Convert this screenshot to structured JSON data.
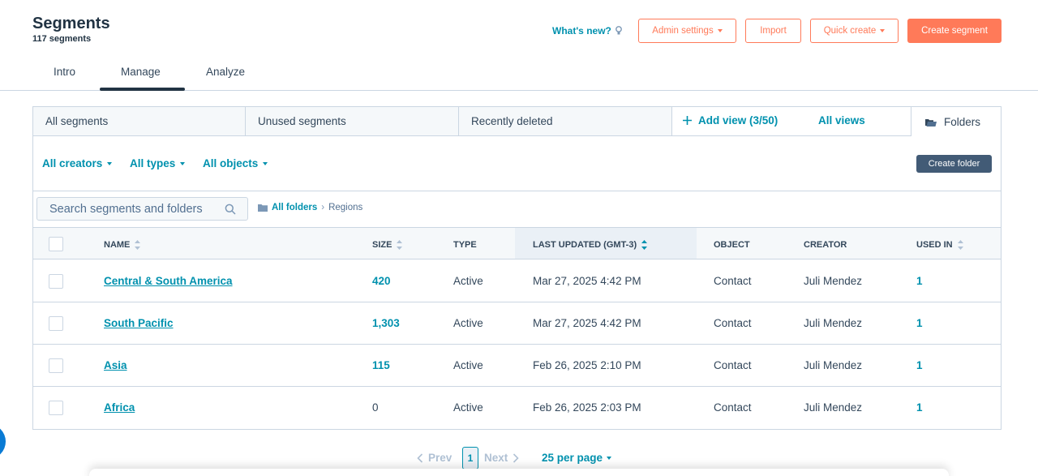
{
  "header": {
    "title": "Segments",
    "subtitle": "117 segments",
    "whats_new": "What's new?",
    "admin_settings": "Admin settings",
    "import": "Import",
    "quick_create": "Quick create",
    "create_segment": "Create segment",
    "icons": {
      "whats_new": "lightbulb-icon",
      "dropdown": "caret-down-icon"
    }
  },
  "tabs": [
    "Intro",
    "Manage",
    "Analyze"
  ],
  "active_tab": "Manage",
  "views": {
    "tabs": [
      "All segments",
      "Unused segments",
      "Recently deleted"
    ],
    "add_view": "Add view (3/50)",
    "all_views": "All views",
    "folders": "Folders"
  },
  "filters": {
    "creators": "All creators",
    "types": "All types",
    "objects": "All objects",
    "create_folder": "Create folder"
  },
  "search": {
    "placeholder": "Search segments and folders"
  },
  "breadcrumb": {
    "root": "All folders",
    "current": "Regions"
  },
  "table": {
    "columns": {
      "name": "NAME",
      "size": "SIZE",
      "type": "TYPE",
      "last_updated": "LAST UPDATED (GMT-3)",
      "object": "OBJECT",
      "creator": "CREATOR",
      "used_in": "USED IN"
    },
    "rows": [
      {
        "name": "Central & South America",
        "size": "420",
        "type": "Active",
        "last_updated": "Mar 27, 2025 4:42 PM",
        "object": "Contact",
        "creator": "Juli Mendez",
        "used_in": "1"
      },
      {
        "name": "South Pacific",
        "size": "1,303",
        "type": "Active",
        "last_updated": "Mar 27, 2025 4:42 PM",
        "object": "Contact",
        "creator": "Juli Mendez",
        "used_in": "1"
      },
      {
        "name": "Asia",
        "size": "115",
        "type": "Active",
        "last_updated": "Feb 26, 2025 2:10 PM",
        "object": "Contact",
        "creator": "Juli Mendez",
        "used_in": "1"
      },
      {
        "name": "Africa",
        "size": "0",
        "type": "Active",
        "last_updated": "Feb 26, 2025 2:03 PM",
        "object": "Contact",
        "creator": "Juli Mendez",
        "used_in": "1"
      }
    ]
  },
  "pagination": {
    "prev": "Prev",
    "page": "1",
    "next": "Next",
    "per_page": "25 per page"
  },
  "colors": {
    "accent": "#ff7a59",
    "link": "#0091ae",
    "text": "#33475b",
    "dark_button": "#425b76",
    "border": "#cbd6e2",
    "header_bg": "#f5f8fa"
  }
}
